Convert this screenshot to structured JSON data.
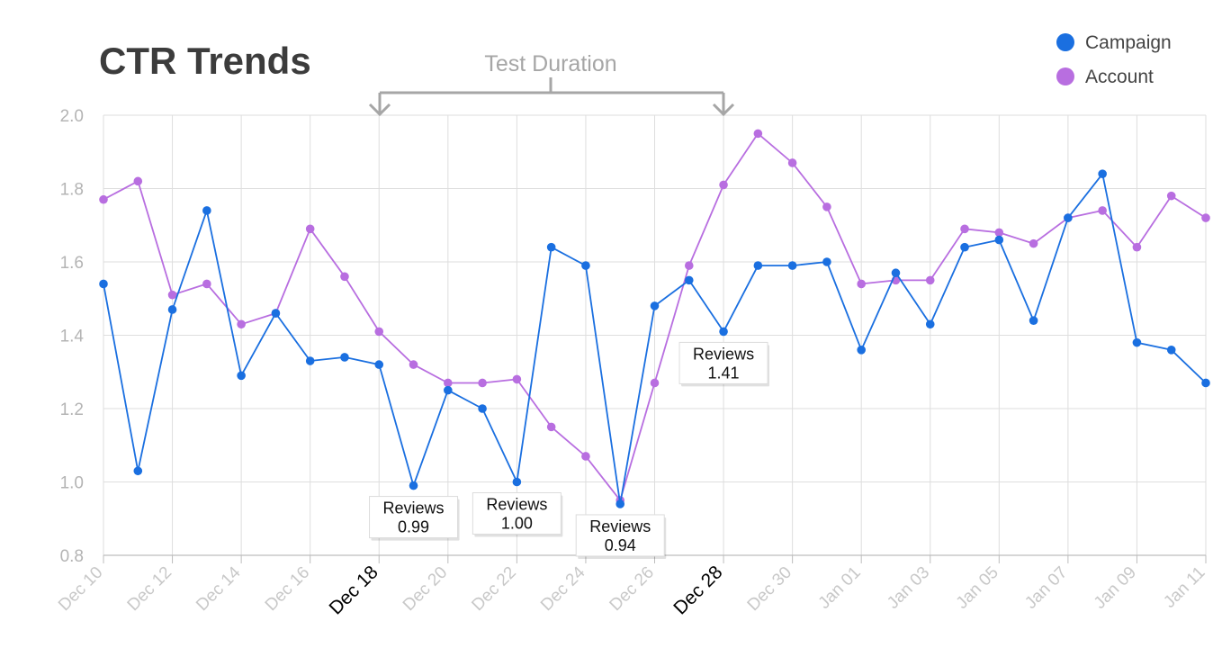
{
  "title": "CTR Trends",
  "legend": [
    {
      "label": "Campaign",
      "color": "#1a6fe0"
    },
    {
      "label": "Account",
      "color": "#b86ee0"
    }
  ],
  "bracket": {
    "label": "Test Duration",
    "start": "Dec 18",
    "end": "Dec 28"
  },
  "chart_data": {
    "type": "line",
    "ylim": [
      0.8,
      2.0
    ],
    "yticks": [
      "0.8",
      "1.0",
      "1.2",
      "1.4",
      "1.6",
      "1.8",
      "2.0"
    ],
    "x": [
      "Dec 10",
      "Dec 11",
      "Dec 12",
      "Dec 13",
      "Dec 14",
      "Dec 15",
      "Dec 16",
      "Dec 17",
      "Dec 18",
      "Dec 19",
      "Dec 20",
      "Dec 21",
      "Dec 22",
      "Dec 23",
      "Dec 24",
      "Dec 25",
      "Dec 26",
      "Dec 27",
      "Dec 28",
      "Dec 29",
      "Dec 30",
      "Dec 31",
      "Jan 01",
      "Jan 02",
      "Jan 03",
      "Jan 04",
      "Jan 05",
      "Jan 06",
      "Jan 07",
      "Jan 08",
      "Jan 09",
      "Jan 10",
      "Jan 11"
    ],
    "xtick_labels": [
      "Dec 10",
      "Dec 12",
      "Dec 14",
      "Dec 16",
      "Dec 18",
      "Dec 20",
      "Dec 22",
      "Dec 24",
      "Dec 26",
      "Dec 28",
      "Dec 30",
      "Jan 01",
      "Jan 03",
      "Jan 05",
      "Jan 07",
      "Jan 09",
      "Jan 11"
    ],
    "highlighted_ticks": [
      "Dec 18",
      "Dec 28"
    ],
    "grid": true,
    "legend_position": "top-right",
    "series": [
      {
        "name": "Campaign",
        "color": "#1a6fe0",
        "values": [
          1.54,
          1.03,
          1.47,
          1.74,
          1.29,
          1.46,
          1.33,
          1.34,
          1.32,
          0.99,
          1.25,
          1.2,
          1.0,
          1.64,
          1.59,
          0.94,
          1.48,
          1.55,
          1.41,
          1.59,
          1.59,
          1.6,
          1.36,
          1.57,
          1.43,
          1.64,
          1.66,
          1.44,
          1.72,
          1.84,
          1.38,
          1.36,
          1.27
        ]
      },
      {
        "name": "Account",
        "color": "#b86ee0",
        "values": [
          1.77,
          1.82,
          1.51,
          1.54,
          1.43,
          1.46,
          1.69,
          1.56,
          1.41,
          1.32,
          1.27,
          1.27,
          1.28,
          1.15,
          1.07,
          0.95,
          1.27,
          1.59,
          1.81,
          1.95,
          1.87,
          1.75,
          1.54,
          1.55,
          1.55,
          1.69,
          1.68,
          1.65,
          1.72,
          1.74,
          1.64,
          1.78,
          1.72
        ]
      }
    ],
    "annotations": [
      {
        "x": "Dec 19",
        "label": "Reviews",
        "value": "0.99"
      },
      {
        "x": "Dec 22",
        "label": "Reviews",
        "value": "1.00"
      },
      {
        "x": "Dec 25",
        "label": "Reviews",
        "value": "0.94"
      },
      {
        "x": "Dec 28",
        "label": "Reviews",
        "value": "1.41"
      }
    ]
  }
}
